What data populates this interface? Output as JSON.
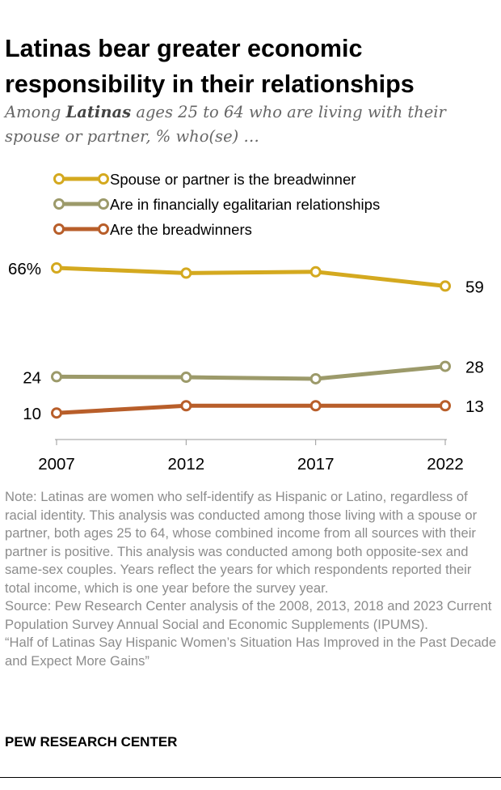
{
  "title": "Latinas bear greater economic responsibility in their relationships",
  "subtitle": {
    "pre": "Among ",
    "bold": "Latinas",
    "post": " ages 25 to 64 who are living with their spouse or partner, % who(se) …"
  },
  "chart_data": {
    "type": "line",
    "x": [
      2007,
      2012,
      2017,
      2022
    ],
    "x_tick_labels": [
      "2007",
      "2012",
      "2017",
      "2022"
    ],
    "legend_placement": "top-left",
    "grid": false,
    "series": [
      {
        "name": "Spouse or partner is the breadwinner",
        "color": "#D4A91F",
        "values": [
          66,
          64,
          64.5,
          59
        ],
        "start_label": "66%",
        "end_label": "59"
      },
      {
        "name": "Are in financially egalitarian relationships",
        "color": "#9C9A6A",
        "values": [
          24,
          23.8,
          23.2,
          28
        ],
        "start_label": "24",
        "end_label": "28"
      },
      {
        "name": "Are the breadwinners",
        "color": "#B85E2A",
        "values": [
          10,
          12.8,
          12.8,
          12.8
        ],
        "start_label": "10",
        "end_label": "13"
      }
    ]
  },
  "note": [
    "Note: Latinas are women who self-identify as Hispanic or Latino, regardless of racial identity. This analysis was conducted among those living with a spouse or partner, both ages 25 to 64, whose combined income from all sources with their partner is positive. This analysis was conducted among both opposite-sex and same-sex couples. Years reflect the years for which respondents reported their total income, which is one year before the survey year.",
    "Source: Pew Research Center analysis of the 2008, 2013, 2018 and 2023 Current Population Survey Annual Social and Economic Supplements (IPUMS).",
    "“Half of Latinas Say Hispanic Women’s Situation Has Improved in the Past Decade and Expect More Gains”"
  ],
  "brand": "PEW RESEARCH CENTER"
}
